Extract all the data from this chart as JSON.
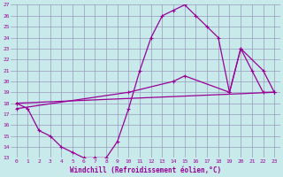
{
  "xlabel": "Windchill (Refroidissement éolien,°C)",
  "bg_color": "#c8eaea",
  "grid_color": "#9999bb",
  "line_color": "#990099",
  "xlim": [
    -0.5,
    23.5
  ],
  "ylim": [
    13,
    27
  ],
  "xticks": [
    0,
    1,
    2,
    3,
    4,
    5,
    6,
    7,
    8,
    9,
    10,
    11,
    12,
    13,
    14,
    15,
    16,
    17,
    18,
    19,
    20,
    21,
    22,
    23
  ],
  "yticks": [
    13,
    14,
    15,
    16,
    17,
    18,
    19,
    20,
    21,
    22,
    23,
    24,
    25,
    26,
    27
  ],
  "series": [
    {
      "x": [
        0,
        1,
        2,
        3,
        4,
        5,
        6,
        7,
        8,
        9,
        10,
        11,
        12,
        13,
        14,
        15,
        16,
        17,
        18,
        19,
        20,
        21,
        22,
        23
      ],
      "y": [
        18,
        17.5,
        15.5,
        15,
        14,
        13.5,
        13,
        13,
        13,
        14.5,
        17.5,
        21,
        24,
        26,
        26.5,
        27,
        26,
        25,
        24,
        19,
        23,
        21,
        19,
        19
      ]
    },
    {
      "x": [
        0,
        23
      ],
      "y": [
        18,
        19
      ]
    },
    {
      "x": [
        0,
        10,
        14,
        15,
        19,
        20,
        22,
        23
      ],
      "y": [
        17.5,
        19,
        20,
        20.5,
        19,
        23,
        21,
        19
      ]
    }
  ]
}
